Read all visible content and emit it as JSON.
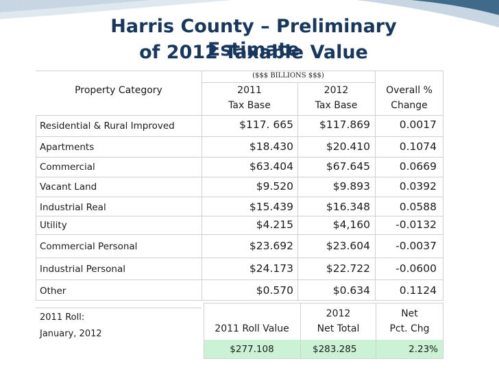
{
  "title": {
    "line1": "Harris County – Preliminary Estimate",
    "line2": "of 2012 Taxable Value"
  },
  "table": {
    "units_note": "($$$ BILLIONS $$$)",
    "headers": {
      "category": "Property Category",
      "y2011_a": "2011",
      "y2011_b": "Tax Base",
      "y2012_a": "2012",
      "y2012_b": "Tax Base",
      "chg_a": "Overall %",
      "chg_b": "Change"
    },
    "rows": [
      {
        "category": "Residential & Rural Improved",
        "v2011": "$117. 665",
        "v2012": "$117.869",
        "change": "0.0017"
      },
      {
        "category": "Apartments",
        "v2011": "$18.430",
        "v2012": "$20.410",
        "change": "0.1074"
      },
      {
        "category": "Commercial",
        "v2011": "$63.404",
        "v2012": "$67.645",
        "change": "0.0669"
      },
      {
        "category": "Vacant Land",
        "v2011": "$9.520",
        "v2012": "$9.893",
        "change": "0.0392"
      },
      {
        "category": "Industrial Real",
        "v2011": "$15.439",
        "v2012": "$16.348",
        "change": "0.0588"
      },
      {
        "category": "Utility",
        "v2011": "$4.215",
        "v2012": "$4,160",
        "change": "-0.0132"
      },
      {
        "category": "Commercial Personal",
        "v2011": "$23.692",
        "v2012": "$23.604",
        "change": "-0.0037"
      },
      {
        "category": "Industrial Personal",
        "v2011": "$24.173",
        "v2012": "$22.722",
        "change": "-0.0600"
      },
      {
        "category": "Other",
        "v2011": "$0.570",
        "v2012": "$0.634",
        "change": "0.1124"
      }
    ]
  },
  "summary": {
    "roll_label": "2011 Roll:",
    "roll_date": "January, 2012",
    "roll_value_header": "2011 Roll Value",
    "net_total_header_a": "2012",
    "net_total_header_b": "Net Total",
    "pct_header_a": "Net",
    "pct_header_b": "Pct. Chg",
    "roll_value": "$277.108",
    "net_total": "$283.285",
    "pct_chg": "2.23%"
  },
  "colors": {
    "title": "#17375e",
    "highlight": "#ccf2d6",
    "deco_dark": "#3f6a8a",
    "deco_light": "#dfe8ef"
  }
}
